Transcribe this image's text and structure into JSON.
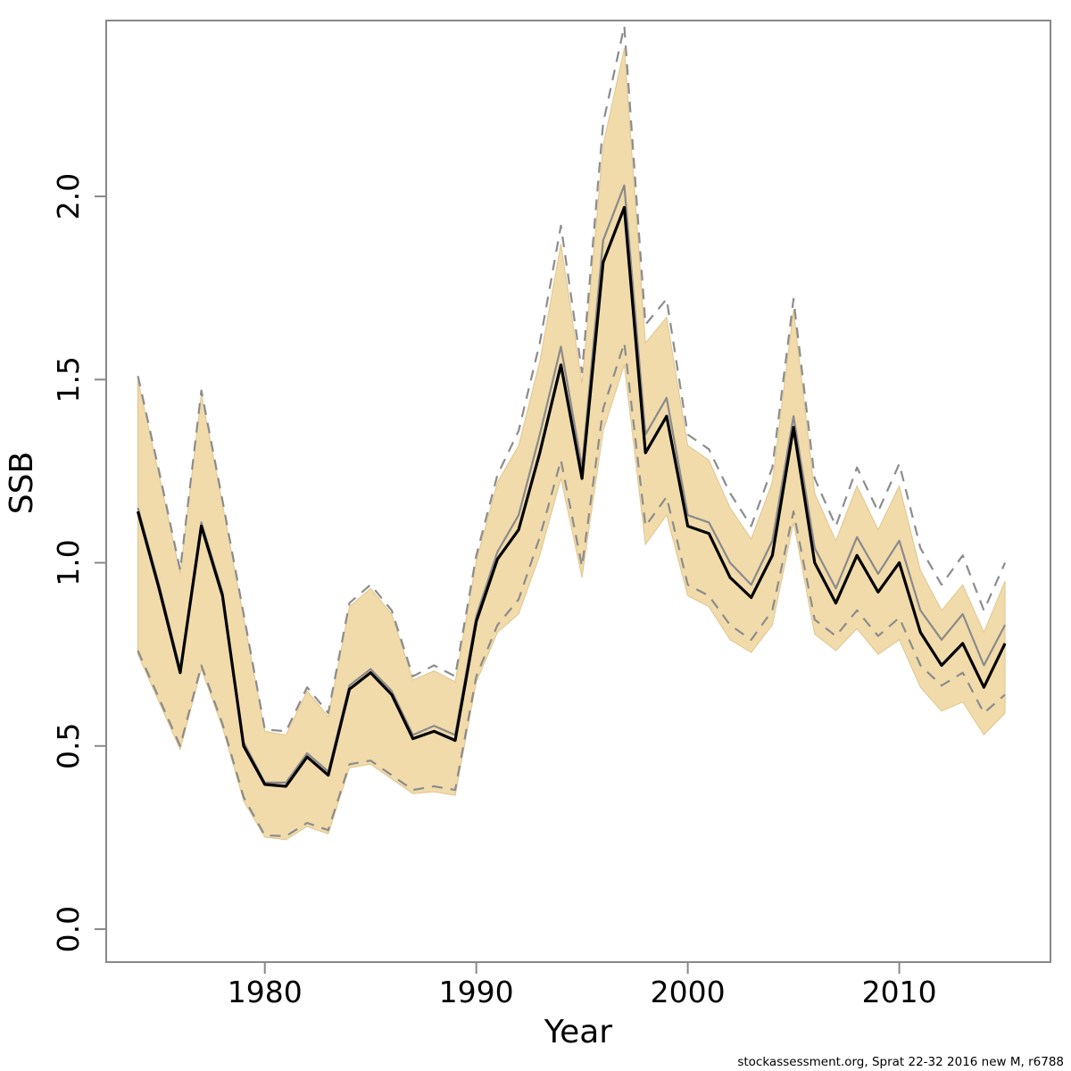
{
  "footer": {
    "text": "stockassessment.org, Sprat 22-32 2016 new M, r6788"
  },
  "chart_data": {
    "type": "line",
    "title": "",
    "xlabel": "Year",
    "ylabel": "SSB",
    "grid": false,
    "legend_position": "none",
    "xlim": [
      1972.5,
      2017.15
    ],
    "ylim": [
      -0.09,
      2.48
    ],
    "x_ticks": [
      1980,
      1990,
      2000,
      2010
    ],
    "y_ticks": [
      0.0,
      0.5,
      1.0,
      1.5,
      2.0
    ],
    "y_tick_labels": [
      "0.0",
      "0.5",
      "1.0",
      "1.5",
      "2.0"
    ],
    "years": [
      1974,
      1975,
      1976,
      1977,
      1978,
      1979,
      1980,
      1981,
      1982,
      1983,
      1984,
      1985,
      1986,
      1987,
      1988,
      1989,
      1990,
      1991,
      1992,
      1993,
      1994,
      1995,
      1996,
      1997,
      1998,
      1999,
      2000,
      2001,
      2002,
      2003,
      2004,
      2005,
      2006,
      2007,
      2008,
      2009,
      2010,
      2011,
      2012,
      2013,
      2014,
      2015
    ],
    "series": [
      {
        "name": "ssb-estimate",
        "description": "current run SSB estimate (solid black line)",
        "color": "#000000",
        "style": "solid",
        "width": 3.2,
        "values": [
          1.14,
          0.93,
          0.7,
          1.1,
          0.91,
          0.5,
          0.395,
          0.39,
          0.47,
          0.42,
          0.655,
          0.7,
          0.64,
          0.52,
          0.54,
          0.515,
          0.84,
          1.01,
          1.09,
          1.3,
          1.54,
          1.23,
          1.82,
          1.97,
          1.3,
          1.4,
          1.1,
          1.08,
          0.96,
          0.905,
          1.02,
          1.37,
          1.0,
          0.89,
          1.02,
          0.92,
          1.0,
          0.81,
          0.72,
          0.78,
          0.66,
          0.78
        ]
      },
      {
        "name": "alt-run-estimate",
        "description": "comparison run SSB estimate (solid grey line)",
        "color": "#8a8a8a",
        "style": "solid",
        "width": 2.2,
        "values": [
          1.15,
          0.94,
          0.71,
          1.11,
          0.92,
          0.51,
          0.4,
          0.4,
          0.48,
          0.43,
          0.665,
          0.71,
          0.65,
          0.53,
          0.555,
          0.53,
          0.855,
          1.03,
          1.13,
          1.35,
          1.59,
          1.26,
          1.88,
          2.03,
          1.35,
          1.45,
          1.13,
          1.11,
          1.0,
          0.94,
          1.06,
          1.4,
          1.04,
          0.93,
          1.07,
          0.97,
          1.06,
          0.87,
          0.79,
          0.86,
          0.72,
          0.83
        ]
      },
      {
        "name": "alt-run-lower-ci",
        "description": "comparison run lower confidence bound (dashed grey line)",
        "color": "#8c8c8c",
        "style": "dashed",
        "width": 2.2,
        "values": [
          0.76,
          0.63,
          0.5,
          0.72,
          0.56,
          0.36,
          0.256,
          0.254,
          0.29,
          0.27,
          0.45,
          0.46,
          0.42,
          0.38,
          0.39,
          0.38,
          0.69,
          0.83,
          0.9,
          1.07,
          1.28,
          0.99,
          1.42,
          1.6,
          1.1,
          1.18,
          0.94,
          0.91,
          0.83,
          0.79,
          0.87,
          1.14,
          0.845,
          0.8,
          0.87,
          0.8,
          0.85,
          0.72,
          0.665,
          0.7,
          0.59,
          0.64
        ]
      },
      {
        "name": "alt-run-upper-ci",
        "description": "comparison run upper confidence bound (dashed grey line)",
        "color": "#8c8c8c",
        "style": "dashed",
        "width": 2.2,
        "values": [
          1.51,
          1.25,
          0.98,
          1.47,
          1.17,
          0.86,
          0.545,
          0.54,
          0.66,
          0.59,
          0.89,
          0.94,
          0.87,
          0.69,
          0.72,
          0.69,
          1.02,
          1.24,
          1.36,
          1.6,
          1.92,
          1.52,
          2.2,
          2.465,
          1.65,
          1.72,
          1.35,
          1.31,
          1.19,
          1.1,
          1.26,
          1.72,
          1.23,
          1.1,
          1.26,
          1.14,
          1.27,
          1.04,
          0.94,
          1.02,
          0.87,
          1.0
        ]
      }
    ],
    "band": {
      "name": "estimate-ci-band",
      "description": "shaded confidence region of black estimate line",
      "fill": "#f1dbab",
      "edge": "#e0c68e",
      "lower": [
        0.75,
        0.62,
        0.49,
        0.71,
        0.55,
        0.35,
        0.251,
        0.244,
        0.28,
        0.26,
        0.44,
        0.45,
        0.41,
        0.37,
        0.375,
        0.365,
        0.675,
        0.81,
        0.86,
        1.02,
        1.23,
        0.96,
        1.36,
        1.54,
        1.05,
        1.13,
        0.91,
        0.88,
        0.79,
        0.755,
        0.83,
        1.11,
        0.805,
        0.76,
        0.82,
        0.75,
        0.79,
        0.66,
        0.595,
        0.62,
        0.53,
        0.59
      ],
      "upper": [
        1.5,
        1.24,
        0.97,
        1.46,
        1.16,
        0.85,
        0.54,
        0.53,
        0.65,
        0.58,
        0.88,
        0.93,
        0.86,
        0.68,
        0.705,
        0.675,
        1.005,
        1.22,
        1.32,
        1.55,
        1.87,
        1.49,
        2.14,
        2.405,
        1.6,
        1.67,
        1.32,
        1.28,
        1.15,
        1.065,
        1.22,
        1.69,
        1.19,
        1.06,
        1.21,
        1.09,
        1.21,
        0.98,
        0.87,
        0.94,
        0.81,
        0.95
      ]
    },
    "axis_color": "#888888",
    "tick_length": 13
  }
}
